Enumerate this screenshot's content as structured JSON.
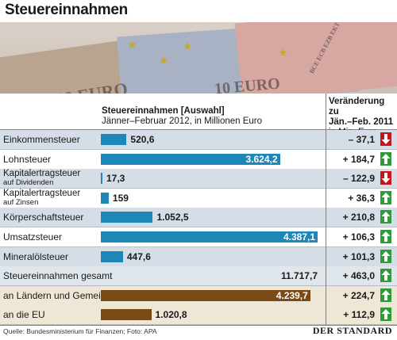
{
  "title": "Steuereinnahmen",
  "photo_texts": {
    "note_50": "50 EURO",
    "note_10": "10 EURO",
    "vertical": "BCE ECB EZB EKT EKP"
  },
  "header": {
    "col1_title": "Steuereinnahmen [Auswahl]",
    "col1_sub": "Jänner–Februar 2012, in Millionen Euro",
    "col2_line1": "Veränderung zu",
    "col2_line2": "Jän.–Feb. 2011",
    "col2_line3": "in Mio. Euro"
  },
  "chart_data": {
    "type": "bar",
    "orientation": "horizontal",
    "title": "Steuereinnahmen",
    "subtitle": "Jänner–Februar 2012, in Millionen Euro",
    "xlim": [
      0,
      4387.1
    ],
    "rows": [
      {
        "name": "Einkommensteuer",
        "sub": "",
        "value": 520.6,
        "value_label": "520,6",
        "change": "– 37,1",
        "direction": "down",
        "bar": "blue",
        "label_inside": false,
        "shade": true
      },
      {
        "name": "Lohnsteuer",
        "sub": "",
        "value": 3624.2,
        "value_label": "3.624,2",
        "change": "+ 184,7",
        "direction": "up",
        "bar": "blue",
        "label_inside": true,
        "shade": false
      },
      {
        "name": "Kapitalertragsteuer",
        "sub": "auf Dividenden",
        "value": 17.3,
        "value_label": "17,3",
        "change": "– 122,9",
        "direction": "down",
        "bar": "blue",
        "label_inside": false,
        "shade": true
      },
      {
        "name": "Kapitalertragsteuer",
        "sub": "auf Zinsen",
        "value": 159,
        "value_label": "159",
        "change": "+ 36,3",
        "direction": "up",
        "bar": "blue",
        "label_inside": false,
        "shade": false
      },
      {
        "name": "Körperschaftsteuer",
        "sub": "",
        "value": 1052.5,
        "value_label": "1.052,5",
        "change": "+ 210,8",
        "direction": "up",
        "bar": "blue",
        "label_inside": false,
        "shade": true
      },
      {
        "name": "Umsatzsteuer",
        "sub": "",
        "value": 4387.1,
        "value_label": "4.387,1",
        "change": "+ 106,3",
        "direction": "up",
        "bar": "blue",
        "label_inside": true,
        "shade": false
      },
      {
        "name": "Mineralölsteuer",
        "sub": "",
        "value": 447.6,
        "value_label": "447,6",
        "change": "+ 101,3",
        "direction": "up",
        "bar": "blue",
        "label_inside": false,
        "shade": true
      },
      {
        "name": "Steuereinnahmen gesamt",
        "sub": "",
        "value": 11717.7,
        "value_label": "11.717,7",
        "change": "+ 463,0",
        "direction": "up",
        "bar": "none",
        "label_inside": false,
        "shade": false
      },
      {
        "name": "an Ländern und Gemeinden",
        "sub": "",
        "value": 4239.7,
        "value_label": "4.239,7",
        "change": "+ 224,7",
        "direction": "up",
        "bar": "brown",
        "label_inside": true,
        "shade": false
      },
      {
        "name": "an die EU",
        "sub": "",
        "value": 1020.8,
        "value_label": "1.020,8",
        "change": "+ 112,9",
        "direction": "up",
        "bar": "brown",
        "label_inside": false,
        "shade": false
      }
    ]
  },
  "colors": {
    "bar_blue": "#1f86b8",
    "bar_brown": "#7a4a16",
    "arrow_up": "#2e9a3a",
    "arrow_down": "#c4161c"
  },
  "footer": {
    "source": "Quelle: Bundesministerium für Finanzen; Foto: APA",
    "logo": "DER STANDARD"
  }
}
